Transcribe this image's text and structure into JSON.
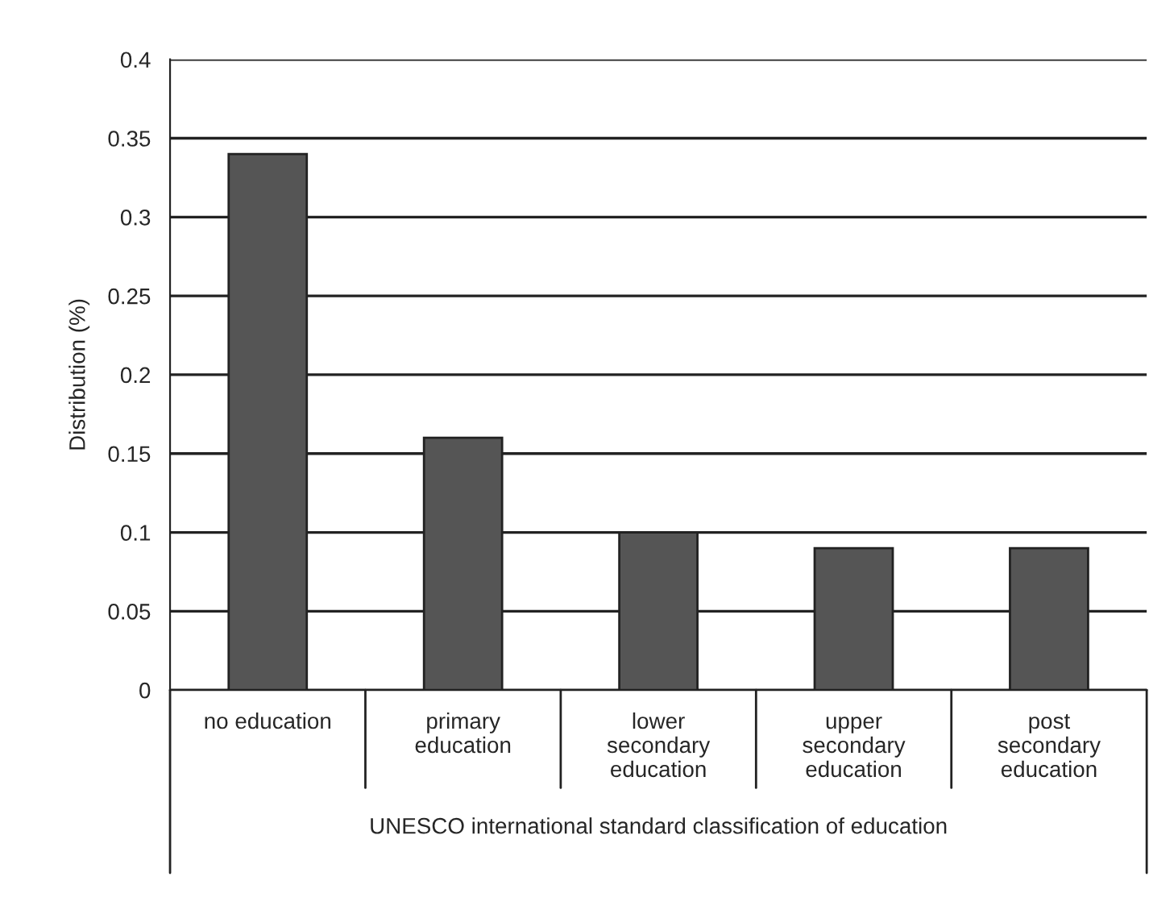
{
  "chart_data": {
    "type": "bar",
    "categories": [
      "no education",
      "primary\neducation",
      "lower\nsecondary\neducation",
      "upper\nsecondary\neducation",
      "post\nsecondary\neducation"
    ],
    "values": [
      0.34,
      0.16,
      0.1,
      0.09,
      0.09
    ],
    "color": "#555555",
    "xlabel": "UNESCO international standard classification of education",
    "ylabel": "Distribution (%)",
    "ylim": [
      0,
      0.4
    ],
    "yticks": [
      0,
      0.05,
      0.1,
      0.15,
      0.2,
      0.25,
      0.3,
      0.35,
      0.4
    ],
    "grid": "y"
  }
}
